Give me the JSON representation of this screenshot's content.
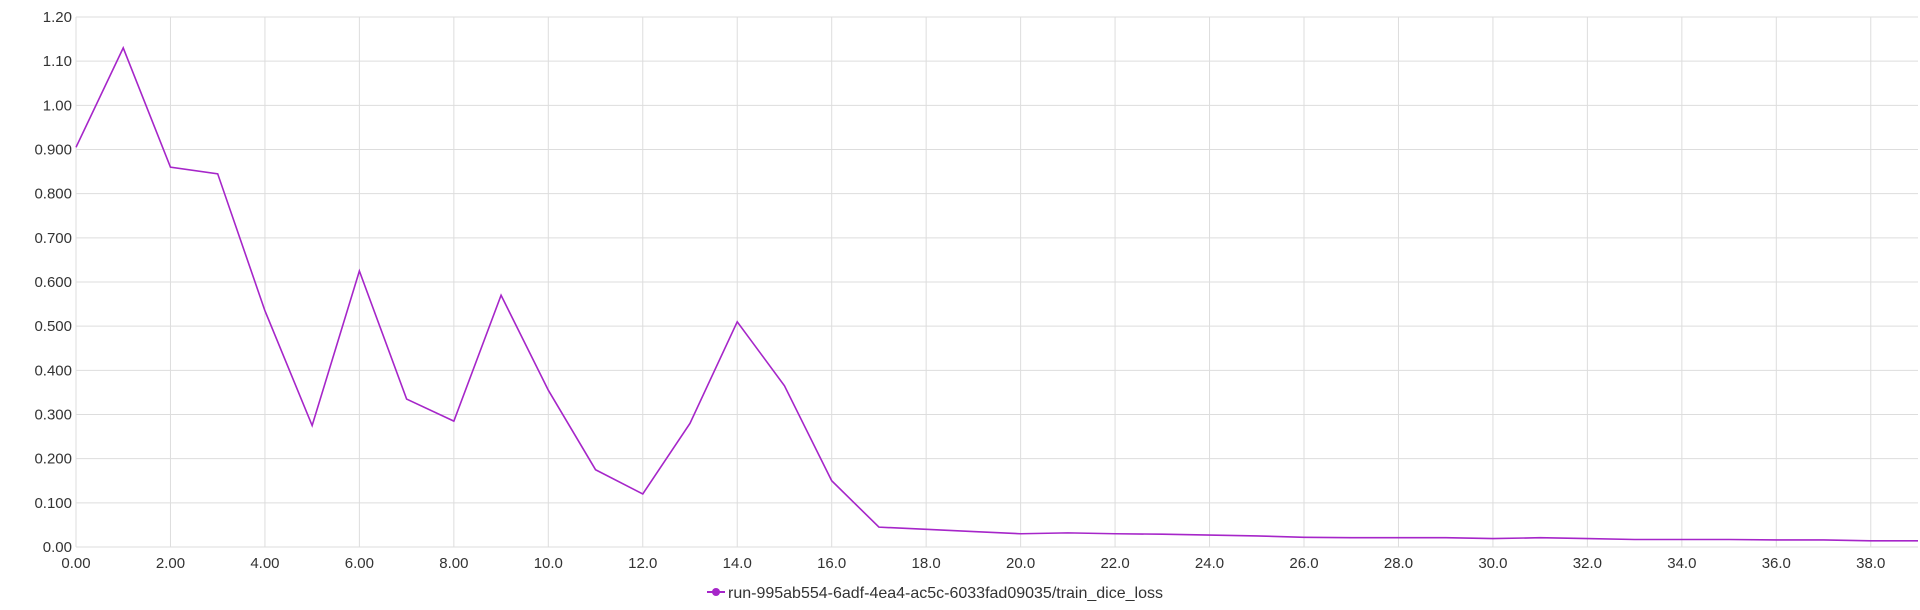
{
  "chart_data": {
    "type": "line",
    "title": "",
    "xlabel": "",
    "ylabel": "",
    "xlim": [
      0,
      39
    ],
    "ylim": [
      0,
      1.2
    ],
    "grid": true,
    "legend_position": "bottom-center",
    "x_ticks": [
      0,
      2,
      4,
      6,
      8,
      10,
      12,
      14,
      16,
      18,
      20,
      22,
      24,
      26,
      28,
      30,
      32,
      34,
      36,
      38
    ],
    "x_tick_labels": [
      "0.00",
      "2.00",
      "4.00",
      "6.00",
      "8.00",
      "10.0",
      "12.0",
      "14.0",
      "16.0",
      "18.0",
      "20.0",
      "22.0",
      "24.0",
      "26.0",
      "28.0",
      "30.0",
      "32.0",
      "34.0",
      "36.0",
      "38.0"
    ],
    "y_ticks": [
      0,
      0.1,
      0.2,
      0.3,
      0.4,
      0.5,
      0.6,
      0.7,
      0.8,
      0.9,
      1.0,
      1.1,
      1.2
    ],
    "y_tick_labels": [
      "0.00",
      "0.100",
      "0.200",
      "0.300",
      "0.400",
      "0.500",
      "0.600",
      "0.700",
      "0.800",
      "0.900",
      "1.00",
      "1.10",
      "1.20"
    ],
    "series": [
      {
        "name": "run-995ab554-6adf-4ea4-ac5c-6033fad09035/train_dice_loss",
        "color": "#a626c9",
        "x": [
          0,
          1,
          2,
          3,
          4,
          5,
          6,
          7,
          8,
          9,
          10,
          11,
          12,
          13,
          14,
          15,
          16,
          17,
          18,
          19,
          20,
          21,
          22,
          23,
          24,
          25,
          26,
          27,
          28,
          29,
          30,
          31,
          32,
          33,
          34,
          35,
          36,
          37,
          38,
          39
        ],
        "y": [
          0.905,
          1.13,
          0.86,
          0.845,
          0.535,
          0.275,
          0.625,
          0.335,
          0.285,
          0.57,
          0.355,
          0.175,
          0.12,
          0.28,
          0.51,
          0.365,
          0.15,
          0.045,
          0.04,
          0.035,
          0.03,
          0.032,
          0.03,
          0.029,
          0.027,
          0.025,
          0.022,
          0.021,
          0.021,
          0.021,
          0.019,
          0.021,
          0.019,
          0.017,
          0.017,
          0.017,
          0.016,
          0.016,
          0.014,
          0.014
        ]
      }
    ]
  }
}
